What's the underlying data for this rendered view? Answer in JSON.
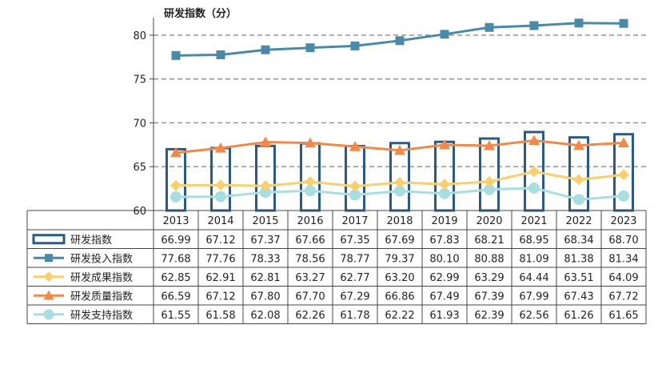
{
  "chart_data": {
    "type": "bar+line",
    "title": "研发指数（分）",
    "ylim": [
      60,
      82
    ],
    "yticks": [
      60,
      65,
      70,
      75,
      80
    ],
    "categories": [
      "2013",
      "2014",
      "2015",
      "2016",
      "2017",
      "2018",
      "2019",
      "2020",
      "2021",
      "2022",
      "2023"
    ],
    "legend_position": "table-left",
    "series": [
      {
        "name": "研发指数",
        "type": "bar",
        "color": "#2e5a80",
        "values": [
          66.99,
          67.12,
          67.37,
          67.66,
          67.35,
          67.69,
          67.83,
          68.21,
          68.95,
          68.34,
          68.7
        ]
      },
      {
        "name": "研发投入指数",
        "type": "line",
        "marker": "square",
        "color": "#4a8aa8",
        "values": [
          77.68,
          77.76,
          78.33,
          78.56,
          78.77,
          79.37,
          80.1,
          80.88,
          81.09,
          81.38,
          81.34
        ]
      },
      {
        "name": "研发成果指数",
        "type": "line",
        "marker": "diamond",
        "color": "#f9cf6f",
        "values": [
          62.85,
          62.91,
          62.81,
          63.27,
          62.77,
          63.2,
          62.99,
          63.29,
          64.44,
          63.51,
          64.09
        ]
      },
      {
        "name": "研发质量指数",
        "type": "line",
        "marker": "triangle",
        "color": "#f0894a",
        "values": [
          66.59,
          67.12,
          67.8,
          67.7,
          67.29,
          66.86,
          67.49,
          67.39,
          67.99,
          67.43,
          67.72
        ]
      },
      {
        "name": "研发支持指数",
        "type": "line",
        "marker": "circle",
        "color": "#a8dde2",
        "values": [
          61.55,
          61.58,
          62.08,
          62.26,
          61.78,
          62.22,
          61.93,
          62.39,
          62.56,
          61.26,
          61.65
        ]
      }
    ],
    "table_values": [
      [
        "66.99",
        "67.12",
        "67.37",
        "67.66",
        "67.35",
        "67.69",
        "67.83",
        "68.21",
        "68.95",
        "68.34",
        "68.70"
      ],
      [
        "77.68",
        "77.76",
        "78.33",
        "78.56",
        "78.77",
        "79.37",
        "80.10",
        "80.88",
        "81.09",
        "81.38",
        "81.34"
      ],
      [
        "62.85",
        "62.91",
        "62.81",
        "63.27",
        "62.77",
        "63.20",
        "62.99",
        "63.29",
        "64.44",
        "63.51",
        "64.09"
      ],
      [
        "66.59",
        "67.12",
        "67.80",
        "67.70",
        "67.29",
        "66.86",
        "67.49",
        "67.39",
        "67.99",
        "67.43",
        "67.72"
      ],
      [
        "61.55",
        "61.58",
        "62.08",
        "62.26",
        "61.78",
        "62.22",
        "61.93",
        "62.39",
        "62.56",
        "61.26",
        "61.65"
      ]
    ],
    "gridlines": "dashed"
  }
}
